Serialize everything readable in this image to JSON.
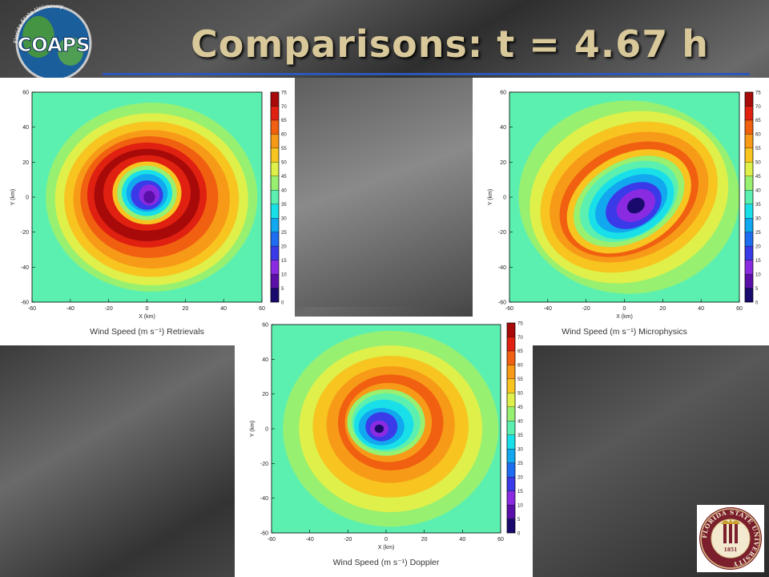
{
  "slide": {
    "title": "Comparisons:  t = 4.67 h"
  },
  "logos": {
    "coaps_text": "COAPS",
    "coaps_arc_top": "Florida State University",
    "coaps_arc_bottom": "Center for Ocean-Atmospheric Prediction Studies",
    "fsu_ring_text": "FLORIDA STATE UNIVERSITY",
    "fsu_year": "1851"
  },
  "colorbar_ticks": [
    "75",
    "70",
    "65",
    "60",
    "55",
    "50",
    "45",
    "40",
    "35",
    "30",
    "25",
    "20",
    "15",
    "10",
    "5",
    "0"
  ],
  "x_ticks": [
    "-60",
    "-40",
    "-20",
    "0",
    "20",
    "40",
    "60"
  ],
  "y_ticks": [
    "60",
    "40",
    "20",
    "0",
    "-20",
    "-40",
    "-60"
  ],
  "axis": {
    "xlabel": "X (km)",
    "ylabel": "Y (km)"
  },
  "panels": [
    {
      "id": "retrievals",
      "caption": "Wind Speed (m s⁻¹) Retrievals"
    },
    {
      "id": "microphysics",
      "caption": "Wind Speed (m s⁻¹) Microphysics"
    },
    {
      "id": "doppler",
      "caption": "Wind Speed (m s⁻¹) Doppler"
    }
  ],
  "colors": {
    "rule": "#2c56b8",
    "title": "#d8c89a",
    "scale": [
      "#1a0a6e",
      "#5a0fa8",
      "#8a2be2",
      "#3a3ae8",
      "#1e6cf0",
      "#12a8f0",
      "#19e0e8",
      "#5cf0b0",
      "#98f070",
      "#dff04a",
      "#f7c420",
      "#f79a18",
      "#f06010",
      "#e02010",
      "#a80a0a"
    ]
  }
}
